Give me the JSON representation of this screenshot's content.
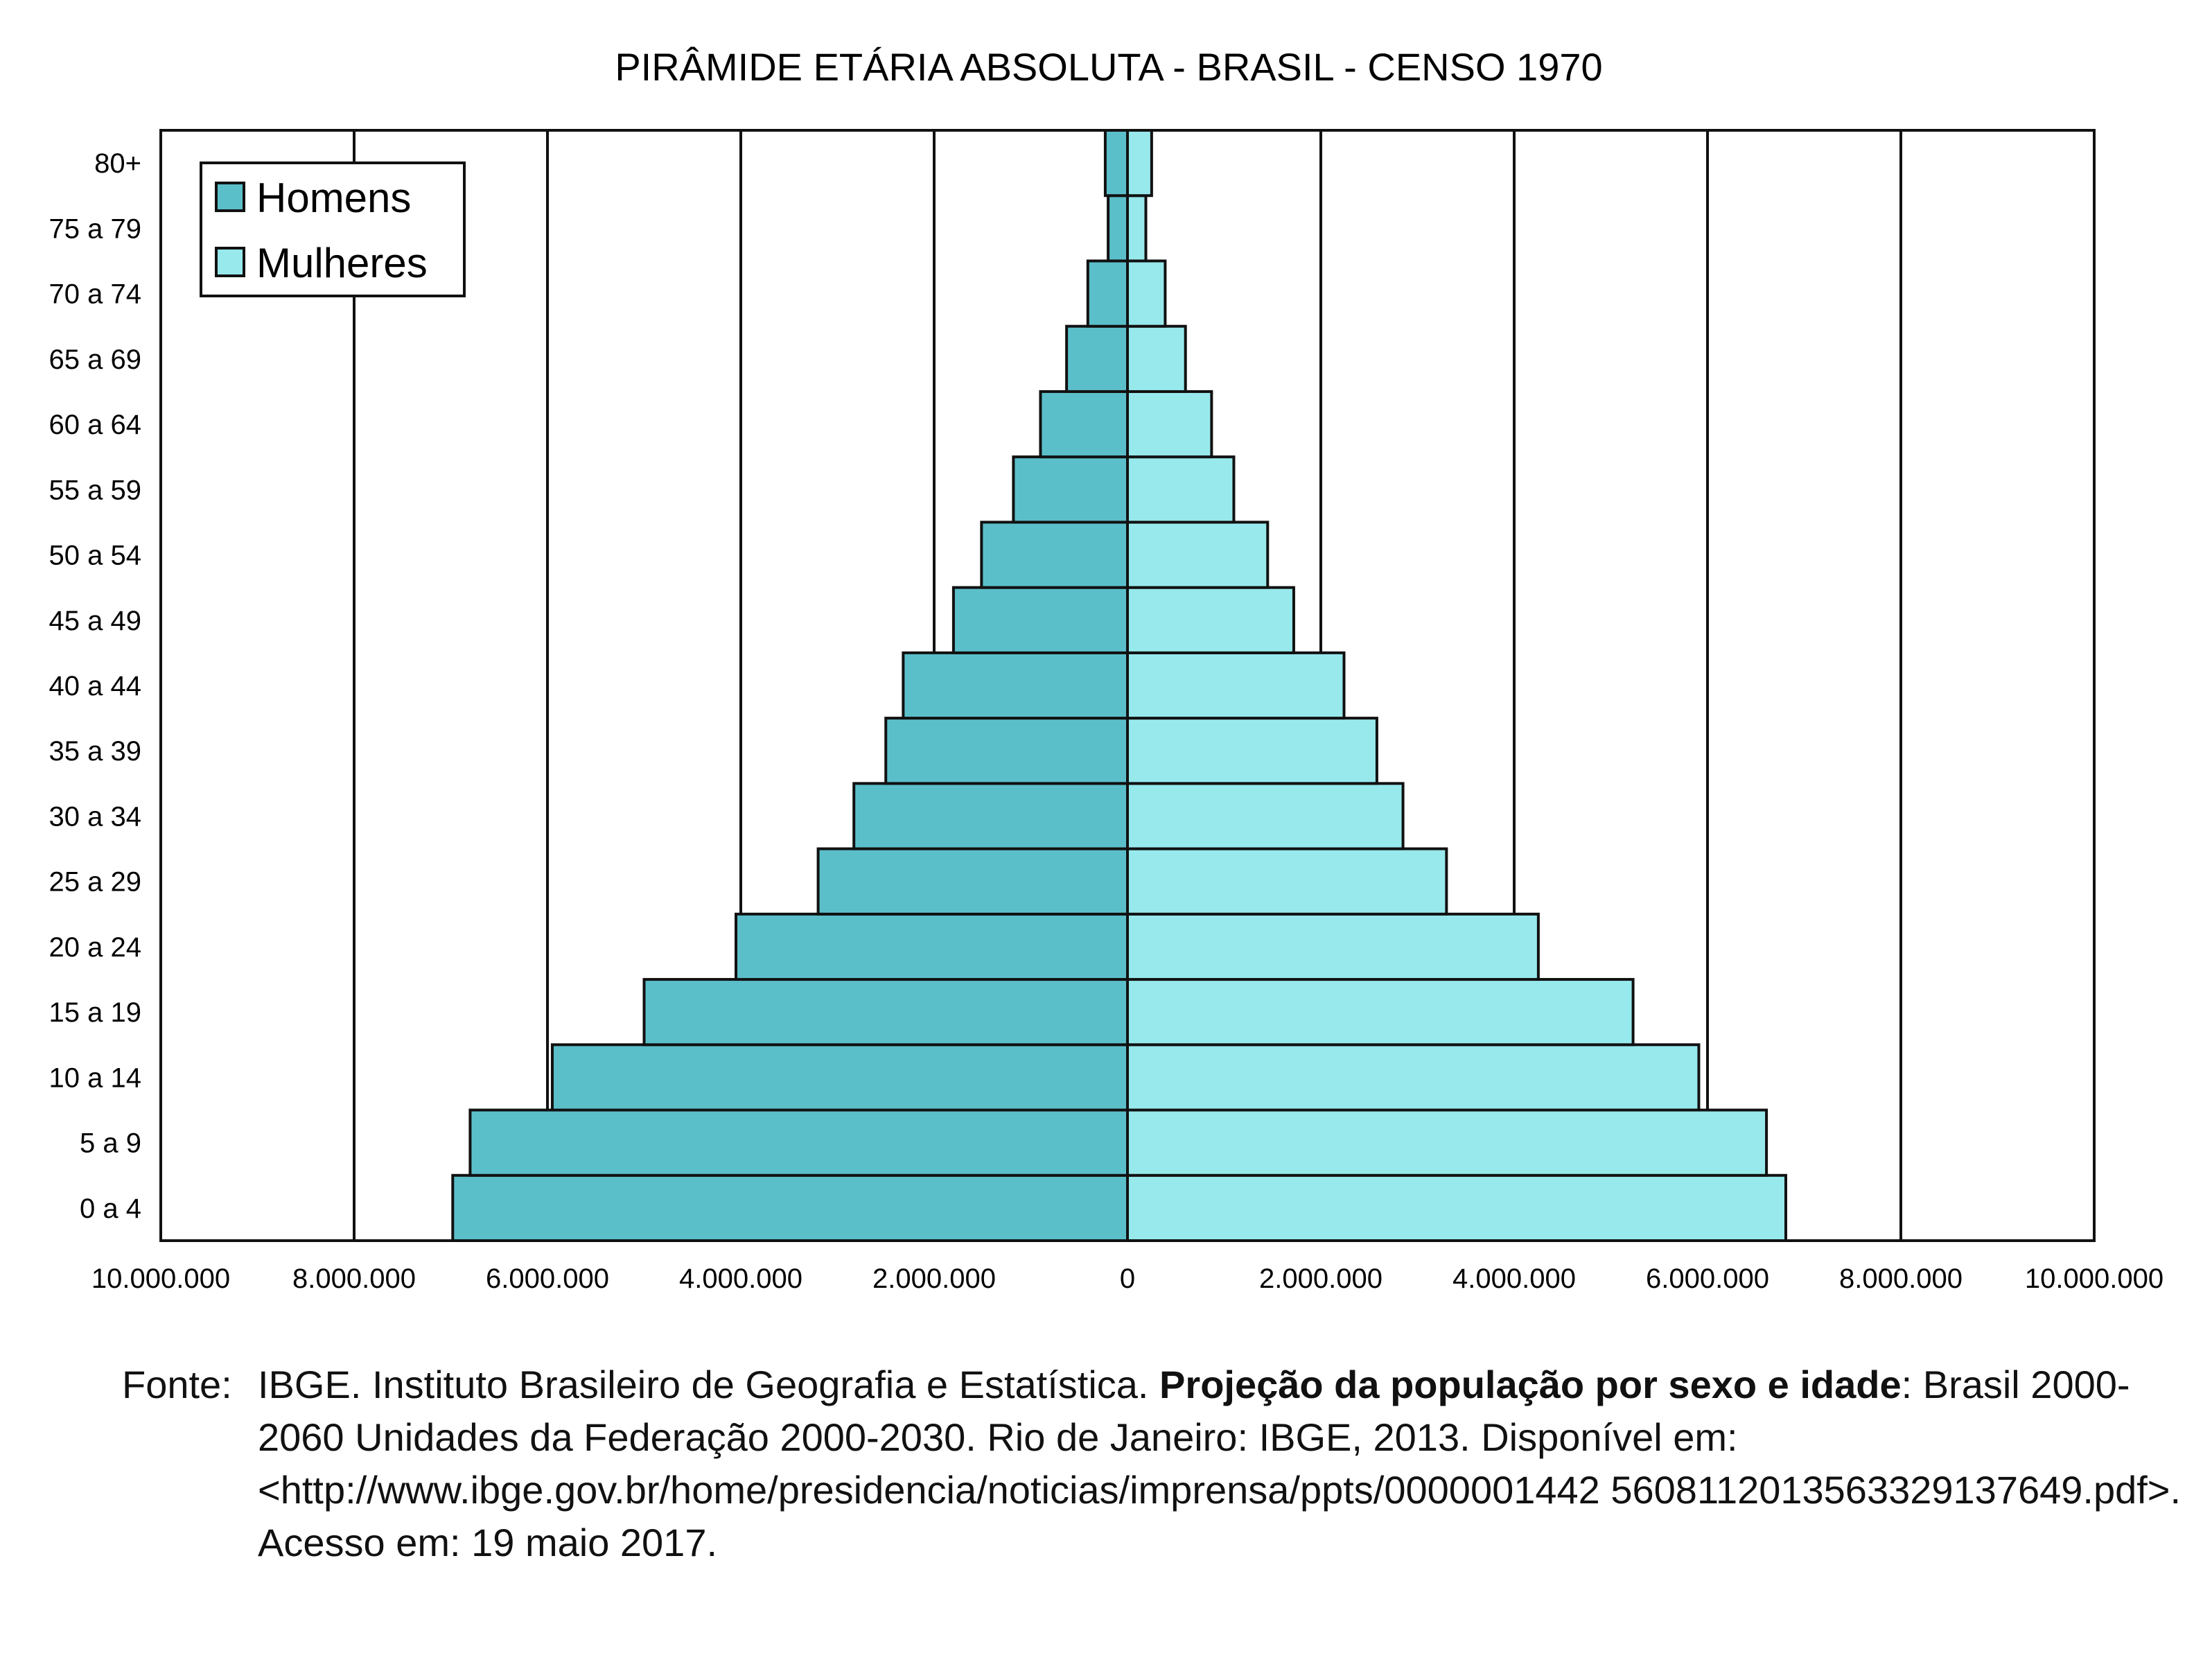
{
  "chart_data": {
    "type": "bar",
    "orientation": "horizontal",
    "layout": "population-pyramid",
    "title": "PIRÂMIDE ETÁRIA ABSOLUTA - BRASIL - CENSO 1970",
    "categories": [
      "0 a 4",
      "5 a 9",
      "10 a 14",
      "15 a 19",
      "20 a 24",
      "25 a 29",
      "30 a 34",
      "35 a 39",
      "40 a 44",
      "45 a 49",
      "50 a 54",
      "55 a 59",
      "60 a 64",
      "65 a 69",
      "70 a 74",
      "75 a 79",
      "80+"
    ],
    "series": [
      {
        "name": "Homens",
        "side": "left",
        "color": "#5bbfca",
        "values": [
          6980000,
          6800000,
          5950000,
          5000000,
          4050000,
          3200000,
          2830000,
          2500000,
          2320000,
          1800000,
          1510000,
          1180000,
          900000,
          630000,
          410000,
          200000,
          230000
        ]
      },
      {
        "name": "Mulheres",
        "side": "right",
        "color": "#97e9ec",
        "values": [
          6810000,
          6610000,
          5910000,
          5230000,
          4250000,
          3300000,
          2850000,
          2580000,
          2240000,
          1720000,
          1450000,
          1100000,
          870000,
          600000,
          390000,
          190000,
          250000
        ]
      }
    ],
    "x_ticks": [
      "10.000.000",
      "8.000.000",
      "6.000.000",
      "4.000.000",
      "2.000.000",
      "0",
      "2.000.000",
      "4.000.000",
      "6.000.000",
      "8.000.000",
      "10.000.000"
    ],
    "xlim": [
      -10000000,
      10000000
    ],
    "grid": "vertical",
    "legend_position": "top-left"
  },
  "source": {
    "label": "Fonte:",
    "text_before": "IBGE. Instituto Brasileiro de Geografia e Estatística. ",
    "text_bold": "Projeção da população por sexo e idade",
    "text_after": ": Brasil 2000-2060 Unidades da Federação 2000-2030. Rio de Janeiro: IBGE, 2013. Disponível em: <http://www.ibge.gov.br/home/presidencia/noticias/imprensa/ppts/0000001442 56081120135633291376​49.pdf>. Acesso em: 19 maio 2017."
  }
}
